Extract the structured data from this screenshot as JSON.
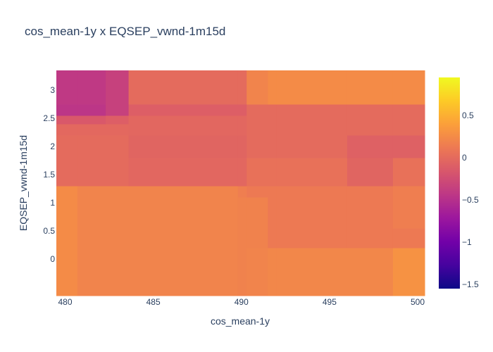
{
  "chart_data": {
    "type": "heatmap",
    "title": "cos_mean-1y x EQSEP_vwnd-1m15d",
    "xlabel": "cos_mean-1y",
    "ylabel": "EQSEP_vwnd-1m15d",
    "x_edges": [
      479.5,
      480.7,
      482.3,
      483.6,
      489.8,
      490.3,
      491.5,
      492.0,
      496.0,
      498.6,
      500.4
    ],
    "y_edges": [
      -0.65,
      0.2,
      0.55,
      1.1,
      1.3,
      1.8,
      2.2,
      2.4,
      2.55,
      2.75,
      3.35
    ],
    "z": [
      [
        0.25,
        0.2,
        0.2,
        0.2,
        0.18,
        0.2,
        0.22,
        0.22,
        0.22,
        0.3
      ],
      [
        0.25,
        0.2,
        0.2,
        0.2,
        0.18,
        0.18,
        0.12,
        0.12,
        0.12,
        0.12
      ],
      [
        0.25,
        0.2,
        0.2,
        0.2,
        0.18,
        0.18,
        0.12,
        0.12,
        0.12,
        0.15
      ],
      [
        0.25,
        0.2,
        0.2,
        0.2,
        0.15,
        0.12,
        0.12,
        0.12,
        0.12,
        0.15
      ],
      [
        0.0,
        0.0,
        0.0,
        -0.03,
        -0.03,
        0.05,
        0.05,
        0.05,
        -0.05,
        0.05
      ],
      [
        0.0,
        0.0,
        0.0,
        -0.05,
        -0.05,
        0.0,
        0.0,
        0.0,
        -0.08,
        -0.08
      ],
      [
        -0.02,
        -0.02,
        -0.02,
        -0.03,
        -0.03,
        0.0,
        0.0,
        0.0,
        0.0,
        0.0
      ],
      [
        -0.15,
        -0.15,
        -0.1,
        -0.03,
        -0.03,
        0.0,
        0.0,
        0.0,
        0.0,
        0.0
      ],
      [
        -0.45,
        -0.45,
        -0.35,
        -0.1,
        -0.1,
        0.0,
        0.0,
        0.0,
        0.0,
        0.0
      ],
      [
        -0.42,
        -0.42,
        -0.35,
        0.0,
        0.0,
        0.2,
        0.25,
        0.25,
        0.25,
        0.25
      ]
    ],
    "xlim": [
      479.5,
      500.4
    ],
    "ylim": [
      -0.65,
      3.35
    ],
    "x_ticks": [
      480,
      485,
      490,
      495,
      500
    ],
    "x_tick_labels": [
      "480",
      "485",
      "490",
      "495",
      "500"
    ],
    "y_ticks": [
      0,
      0.5,
      1,
      1.5,
      2,
      2.5,
      3
    ],
    "y_tick_labels": [
      "0",
      "0.5",
      "1",
      "1.5",
      "2",
      "2.5",
      "3"
    ],
    "colorscale": "plasma",
    "zmin": -1.55,
    "zmax": 0.95,
    "colorbar_ticks": [
      0.5,
      0,
      -0.5,
      -1,
      -1.5
    ],
    "colorbar_tick_labels": [
      "0.5",
      "0",
      "−0.5",
      "−1",
      "−1.5"
    ],
    "grid": false
  }
}
